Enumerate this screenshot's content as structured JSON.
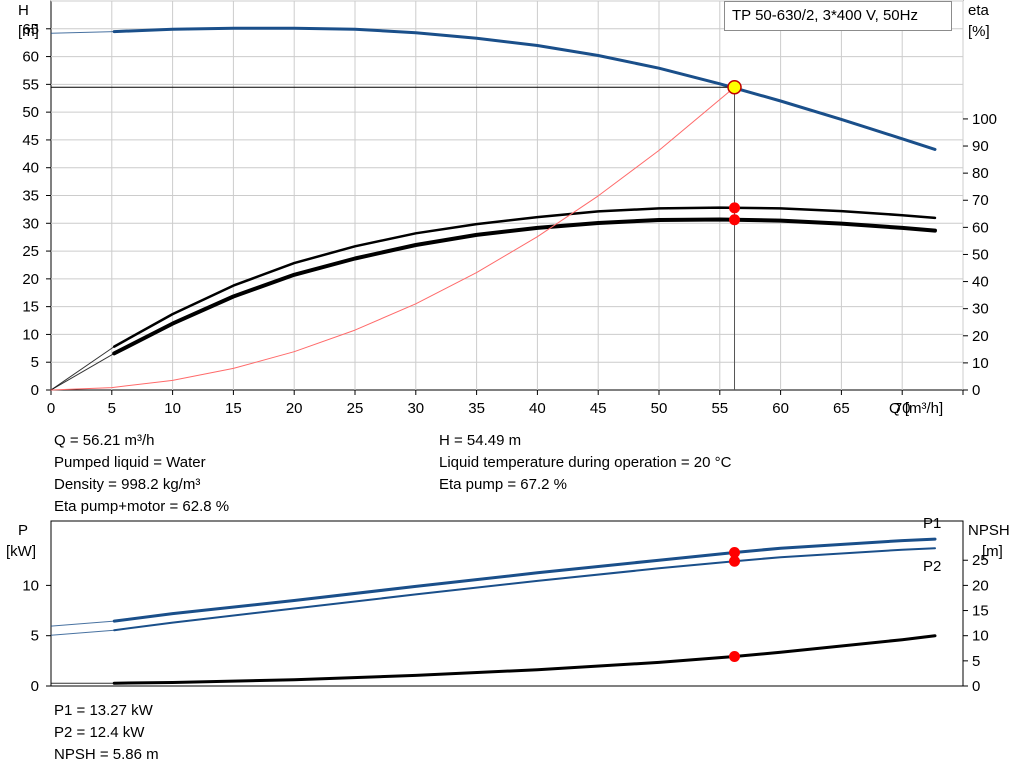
{
  "title": "TP 50-630/2, 3*400 V, 50Hz",
  "colors": {
    "blue": "#1a4f8a",
    "black": "#000000",
    "red_marker": "#ff0000",
    "efficiency_line": "#ff6a6a",
    "op_point_fill": "#ffff00",
    "grid": "#cccccc"
  },
  "info_top": {
    "left": [
      "Q = 56.21 m³/h",
      "Pumped liquid = Water",
      "Density = 998.2 kg/m³",
      "Eta pump+motor = 62.8 %"
    ],
    "right": [
      "H = 54.49 m",
      "Liquid temperature during operation = 20 °C",
      "Eta pump = 67.2 %"
    ]
  },
  "info_bottom": [
    "P1 = 13.27 kW",
    "P2 = 12.4 kW",
    "NPSH = 5.86 m"
  ],
  "chart_data": [
    {
      "type": "line",
      "name": "head-efficiency",
      "x_axis": {
        "label": "Q [m³/h]",
        "range": [
          0,
          75
        ],
        "ticks": [
          0,
          5,
          10,
          15,
          20,
          25,
          30,
          35,
          40,
          45,
          50,
          55,
          60,
          65,
          70
        ]
      },
      "y_left": {
        "label_lines": [
          "H",
          "[m]"
        ],
        "range": [
          0,
          70
        ],
        "ticks": [
          0,
          5,
          10,
          15,
          20,
          25,
          30,
          35,
          40,
          45,
          50,
          55,
          60,
          65
        ]
      },
      "y_right": {
        "label_lines": [
          "eta",
          "[%]"
        ],
        "range": [
          0,
          143.5
        ],
        "ticks": [
          0,
          10,
          20,
          30,
          40,
          50,
          60,
          70,
          80,
          90,
          100
        ]
      },
      "grid": true,
      "series": [
        {
          "id": "head",
          "axis": "left",
          "color": "#1a4f8a",
          "width": 3,
          "x": [
            5.2,
            10,
            15,
            20,
            25,
            30,
            35,
            40,
            45,
            50,
            55,
            60,
            65,
            70,
            72.7
          ],
          "y": [
            64.5,
            64.9,
            65.1,
            65.1,
            64.9,
            64.3,
            63.3,
            62.0,
            60.2,
            57.9,
            55.1,
            52.0,
            48.7,
            45.2,
            43.3
          ],
          "extension": {
            "x": [
              0,
              5.2
            ],
            "y": [
              64.2,
              64.5
            ]
          }
        },
        {
          "id": "eta-pump",
          "axis": "right",
          "color": "#000000",
          "width": 2.5,
          "x": [
            5.2,
            10,
            15,
            20,
            25,
            30,
            35,
            40,
            45,
            50,
            55,
            60,
            65,
            70,
            72.7
          ],
          "y": [
            16.0,
            28.0,
            38.5,
            46.8,
            53.0,
            57.8,
            61.2,
            63.8,
            65.9,
            67.0,
            67.3,
            67.0,
            66.0,
            64.5,
            63.5
          ],
          "extension": {
            "x": [
              0,
              5.2
            ],
            "y": [
              0,
              16.0
            ]
          }
        },
        {
          "id": "eta-total",
          "axis": "right",
          "color": "#000000",
          "width": 4,
          "x": [
            5.2,
            10,
            15,
            20,
            25,
            30,
            35,
            40,
            45,
            50,
            55,
            60,
            65,
            70,
            72.7
          ],
          "y": [
            13.5,
            24.5,
            34.5,
            42.5,
            48.5,
            53.5,
            57.2,
            59.8,
            61.6,
            62.7,
            62.9,
            62.5,
            61.4,
            59.8,
            58.8
          ],
          "extension": {
            "x": [
              0,
              5.2
            ],
            "y": [
              0,
              13.5
            ]
          }
        },
        {
          "id": "efficiency-parabola",
          "axis": "left",
          "color": "#ff6a6a",
          "width": 1,
          "x": [
            0,
            5,
            10,
            15,
            20,
            25,
            30,
            35,
            40,
            45,
            50,
            56.21
          ],
          "y": [
            0,
            0.43,
            1.72,
            3.88,
            6.9,
            10.78,
            15.52,
            21.13,
            27.59,
            34.92,
            43.12,
            54.49
          ]
        }
      ],
      "operating_point": {
        "x": 56.21,
        "y_head": 54.49,
        "eta_pump": 67.2,
        "eta_total": 62.8
      }
    },
    {
      "type": "line",
      "name": "power-npsh",
      "x_axis": {
        "range": [
          0,
          75
        ]
      },
      "y_left": {
        "label_lines": [
          "P",
          "[kW]"
        ],
        "range": [
          0,
          16.4
        ],
        "ticks": [
          0,
          5,
          10
        ]
      },
      "y_right": {
        "label_lines": [
          "NPSH",
          "[m]"
        ],
        "range": [
          0,
          32.8
        ],
        "ticks": [
          0,
          5,
          10,
          15,
          20,
          25
        ]
      },
      "grid": false,
      "series": [
        {
          "id": "P1",
          "name": "P1",
          "axis": "left",
          "color": "#1a4f8a",
          "width": 3,
          "x": [
            5.2,
            10,
            20,
            30,
            40,
            50,
            56.21,
            60,
            70,
            72.7
          ],
          "y": [
            6.45,
            7.2,
            8.5,
            9.9,
            11.25,
            12.5,
            13.27,
            13.7,
            14.45,
            14.6
          ],
          "extension": {
            "x": [
              0,
              5.2
            ],
            "y": [
              5.95,
              6.45
            ]
          }
        },
        {
          "id": "P2",
          "name": "P2",
          "axis": "left",
          "color": "#1a4f8a",
          "width": 2,
          "x": [
            5.2,
            10,
            20,
            30,
            40,
            50,
            56.21,
            60,
            70,
            72.7
          ],
          "y": [
            5.55,
            6.3,
            7.7,
            9.1,
            10.45,
            11.7,
            12.4,
            12.8,
            13.55,
            13.7
          ],
          "extension": {
            "x": [
              0,
              5.2
            ],
            "y": [
              5.05,
              5.55
            ]
          }
        },
        {
          "id": "NPSH",
          "axis": "right",
          "color": "#000000",
          "width": 3,
          "x": [
            5.2,
            10,
            20,
            30,
            40,
            50,
            56.21,
            60,
            70,
            72.7
          ],
          "y": [
            0.55,
            0.7,
            1.25,
            2.1,
            3.25,
            4.7,
            5.86,
            6.7,
            9.2,
            10.0
          ],
          "extension": {
            "x": [
              0,
              5.2
            ],
            "y": [
              0.55,
              0.55
            ]
          }
        }
      ],
      "operating_point": {
        "x": 56.21,
        "P1": 13.27,
        "P2": 12.4,
        "NPSH": 5.86
      }
    }
  ]
}
